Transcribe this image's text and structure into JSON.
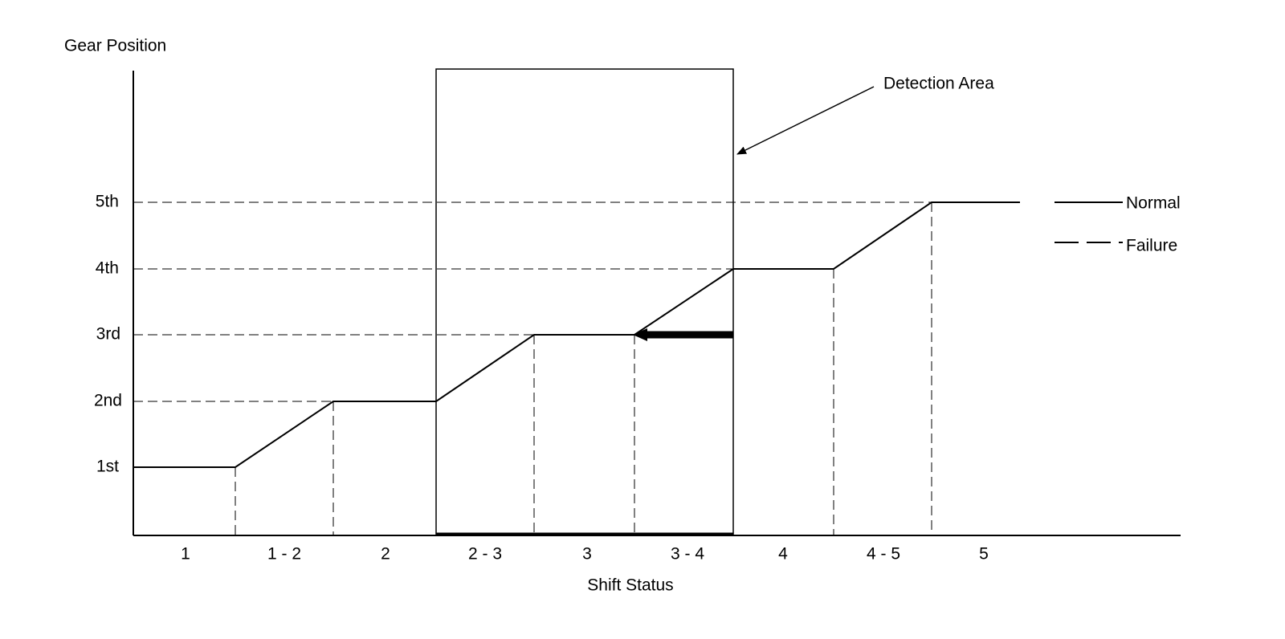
{
  "y_axis": {
    "title": "Gear Position",
    "labels": [
      "1st",
      "2nd",
      "3rd",
      "4th",
      "5th"
    ]
  },
  "x_axis": {
    "title": "Shift Status",
    "categories": [
      "1",
      "1 - 2",
      "2",
      "2 - 3",
      "3",
      "3 - 4",
      "4",
      "4 - 5",
      "5"
    ]
  },
  "annotation": "Detection Area",
  "legend": [
    {
      "label": "Normal"
    },
    {
      "label": "Failure"
    }
  ]
}
